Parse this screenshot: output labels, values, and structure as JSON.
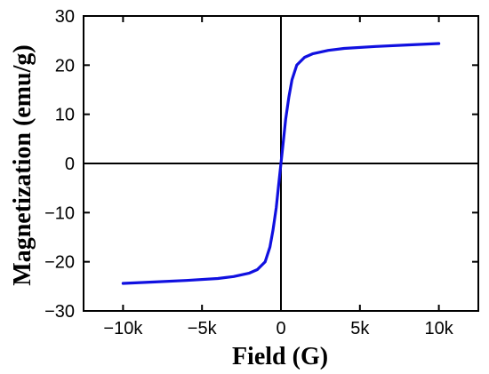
{
  "chart_data": {
    "type": "line",
    "xlabel": "Field (G)",
    "ylabel": "Magnetization (emu/g)",
    "xlim": [
      -12500,
      12500
    ],
    "ylim": [
      -30,
      30
    ],
    "x_ticks": [
      {
        "value": -10000,
        "label": "−10k"
      },
      {
        "value": -5000,
        "label": "−5k"
      },
      {
        "value": 0,
        "label": "0"
      },
      {
        "value": 5000,
        "label": "5k"
      },
      {
        "value": 10000,
        "label": "10k"
      }
    ],
    "y_ticks": [
      {
        "value": -30,
        "label": "−30"
      },
      {
        "value": -20,
        "label": "−20"
      },
      {
        "value": -10,
        "label": "−10"
      },
      {
        "value": 0,
        "label": "0"
      },
      {
        "value": 10,
        "label": "10"
      },
      {
        "value": 20,
        "label": "20"
      },
      {
        "value": 30,
        "label": "30"
      }
    ],
    "zero_lines": true,
    "grid": false,
    "series": [
      {
        "color": "#1010e0",
        "x": [
          -10000,
          -8000,
          -6000,
          -4000,
          -3000,
          -2000,
          -1500,
          -1000,
          -700,
          -500,
          -300,
          -150,
          0,
          150,
          300,
          500,
          700,
          1000,
          1500,
          2000,
          3000,
          4000,
          6000,
          8000,
          10000
        ],
        "y": [
          -24.4,
          -24.1,
          -23.8,
          -23.4,
          -23.0,
          -22.3,
          -21.6,
          -20.0,
          -17.0,
          -13.5,
          -9.0,
          -4.5,
          0,
          4.5,
          9.0,
          13.5,
          17.0,
          20.0,
          21.6,
          22.3,
          23.0,
          23.4,
          23.8,
          24.1,
          24.4
        ]
      }
    ]
  }
}
